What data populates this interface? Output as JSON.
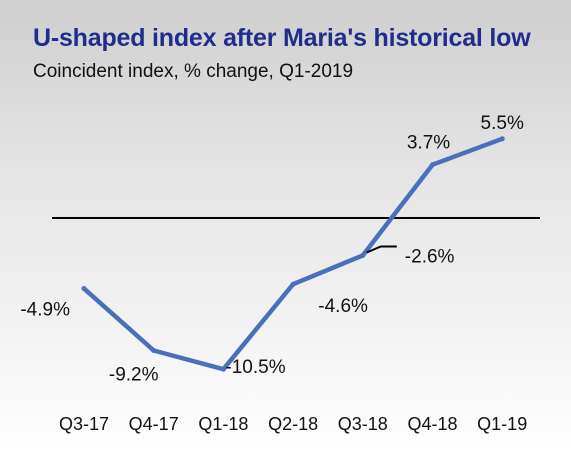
{
  "chart_data": {
    "type": "line",
    "title": "U-shaped index after Maria's historical low",
    "subtitle": "Coincident index, % change, Q1-2019",
    "categories": [
      "Q3-17",
      "Q4-17",
      "Q1-18",
      "Q2-18",
      "Q3-18",
      "Q4-18",
      "Q1-19"
    ],
    "series": [
      {
        "values": [
          -4.9,
          -9.2,
          -10.5,
          -4.6,
          -2.6,
          3.7,
          5.5
        ]
      }
    ],
    "data_labels": [
      "-4.9%",
      "-9.2%",
      "-10.5%",
      "-4.6%",
      "-2.6%",
      "3.7%",
      "5.5%"
    ],
    "zero_line": true,
    "grid": false,
    "colors": {
      "line": "#4a6fbd",
      "zero_line": "#000000",
      "title": "#1f2e8c"
    }
  }
}
